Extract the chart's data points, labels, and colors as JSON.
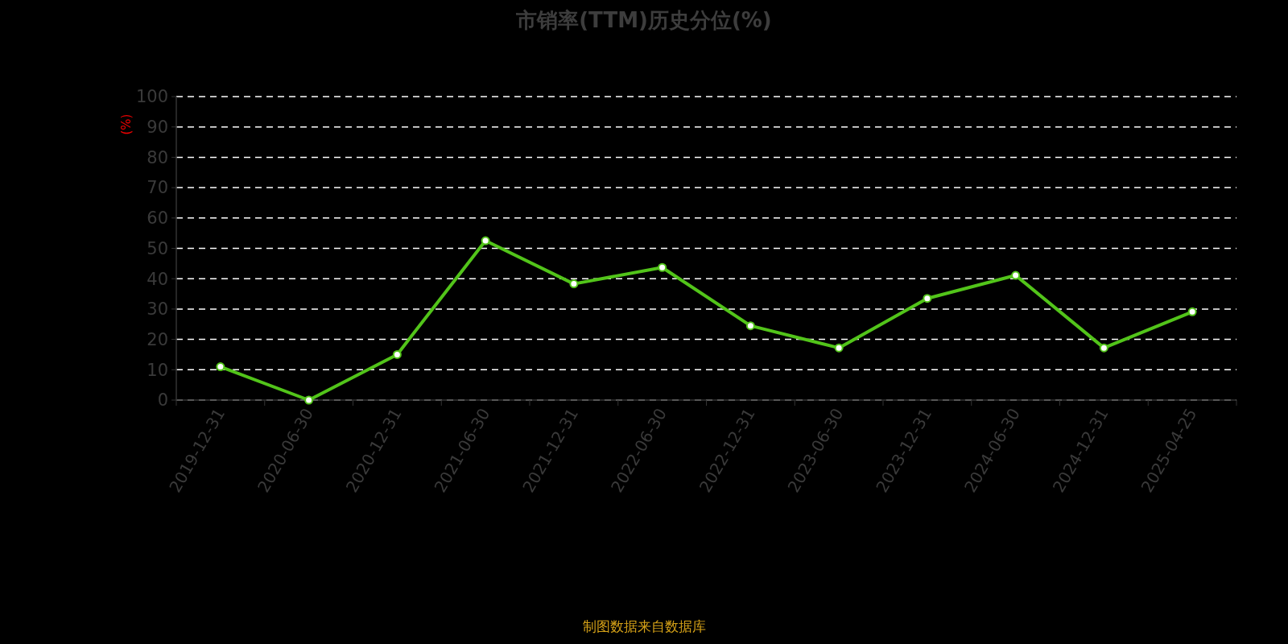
{
  "chart_data": {
    "type": "line",
    "title": "市销率(TTM)历史分位(%)",
    "ylabel": "(%)",
    "categories": [
      "2019-12-31",
      "2020-06-30",
      "2020-12-31",
      "2021-06-30",
      "2021-12-31",
      "2022-06-30",
      "2022-12-31",
      "2023-06-30",
      "2023-12-31",
      "2024-06-30",
      "2024-12-31",
      "2025-04-25"
    ],
    "series": [
      {
        "color": "#52c41a",
        "values": [
          11,
          0,
          15,
          52.5,
          38.3,
          43.7,
          24.5,
          17.2,
          33.5,
          41.1,
          17.2,
          29.1
        ]
      }
    ],
    "ylim": [
      0,
      100
    ],
    "yticks": [
      0,
      10,
      20,
      30,
      40,
      50,
      60,
      70,
      80,
      90,
      100
    ],
    "grid": "y",
    "marker": "circle",
    "line_style": "solid",
    "annotations": [
      "制图数据来自数据库"
    ]
  }
}
